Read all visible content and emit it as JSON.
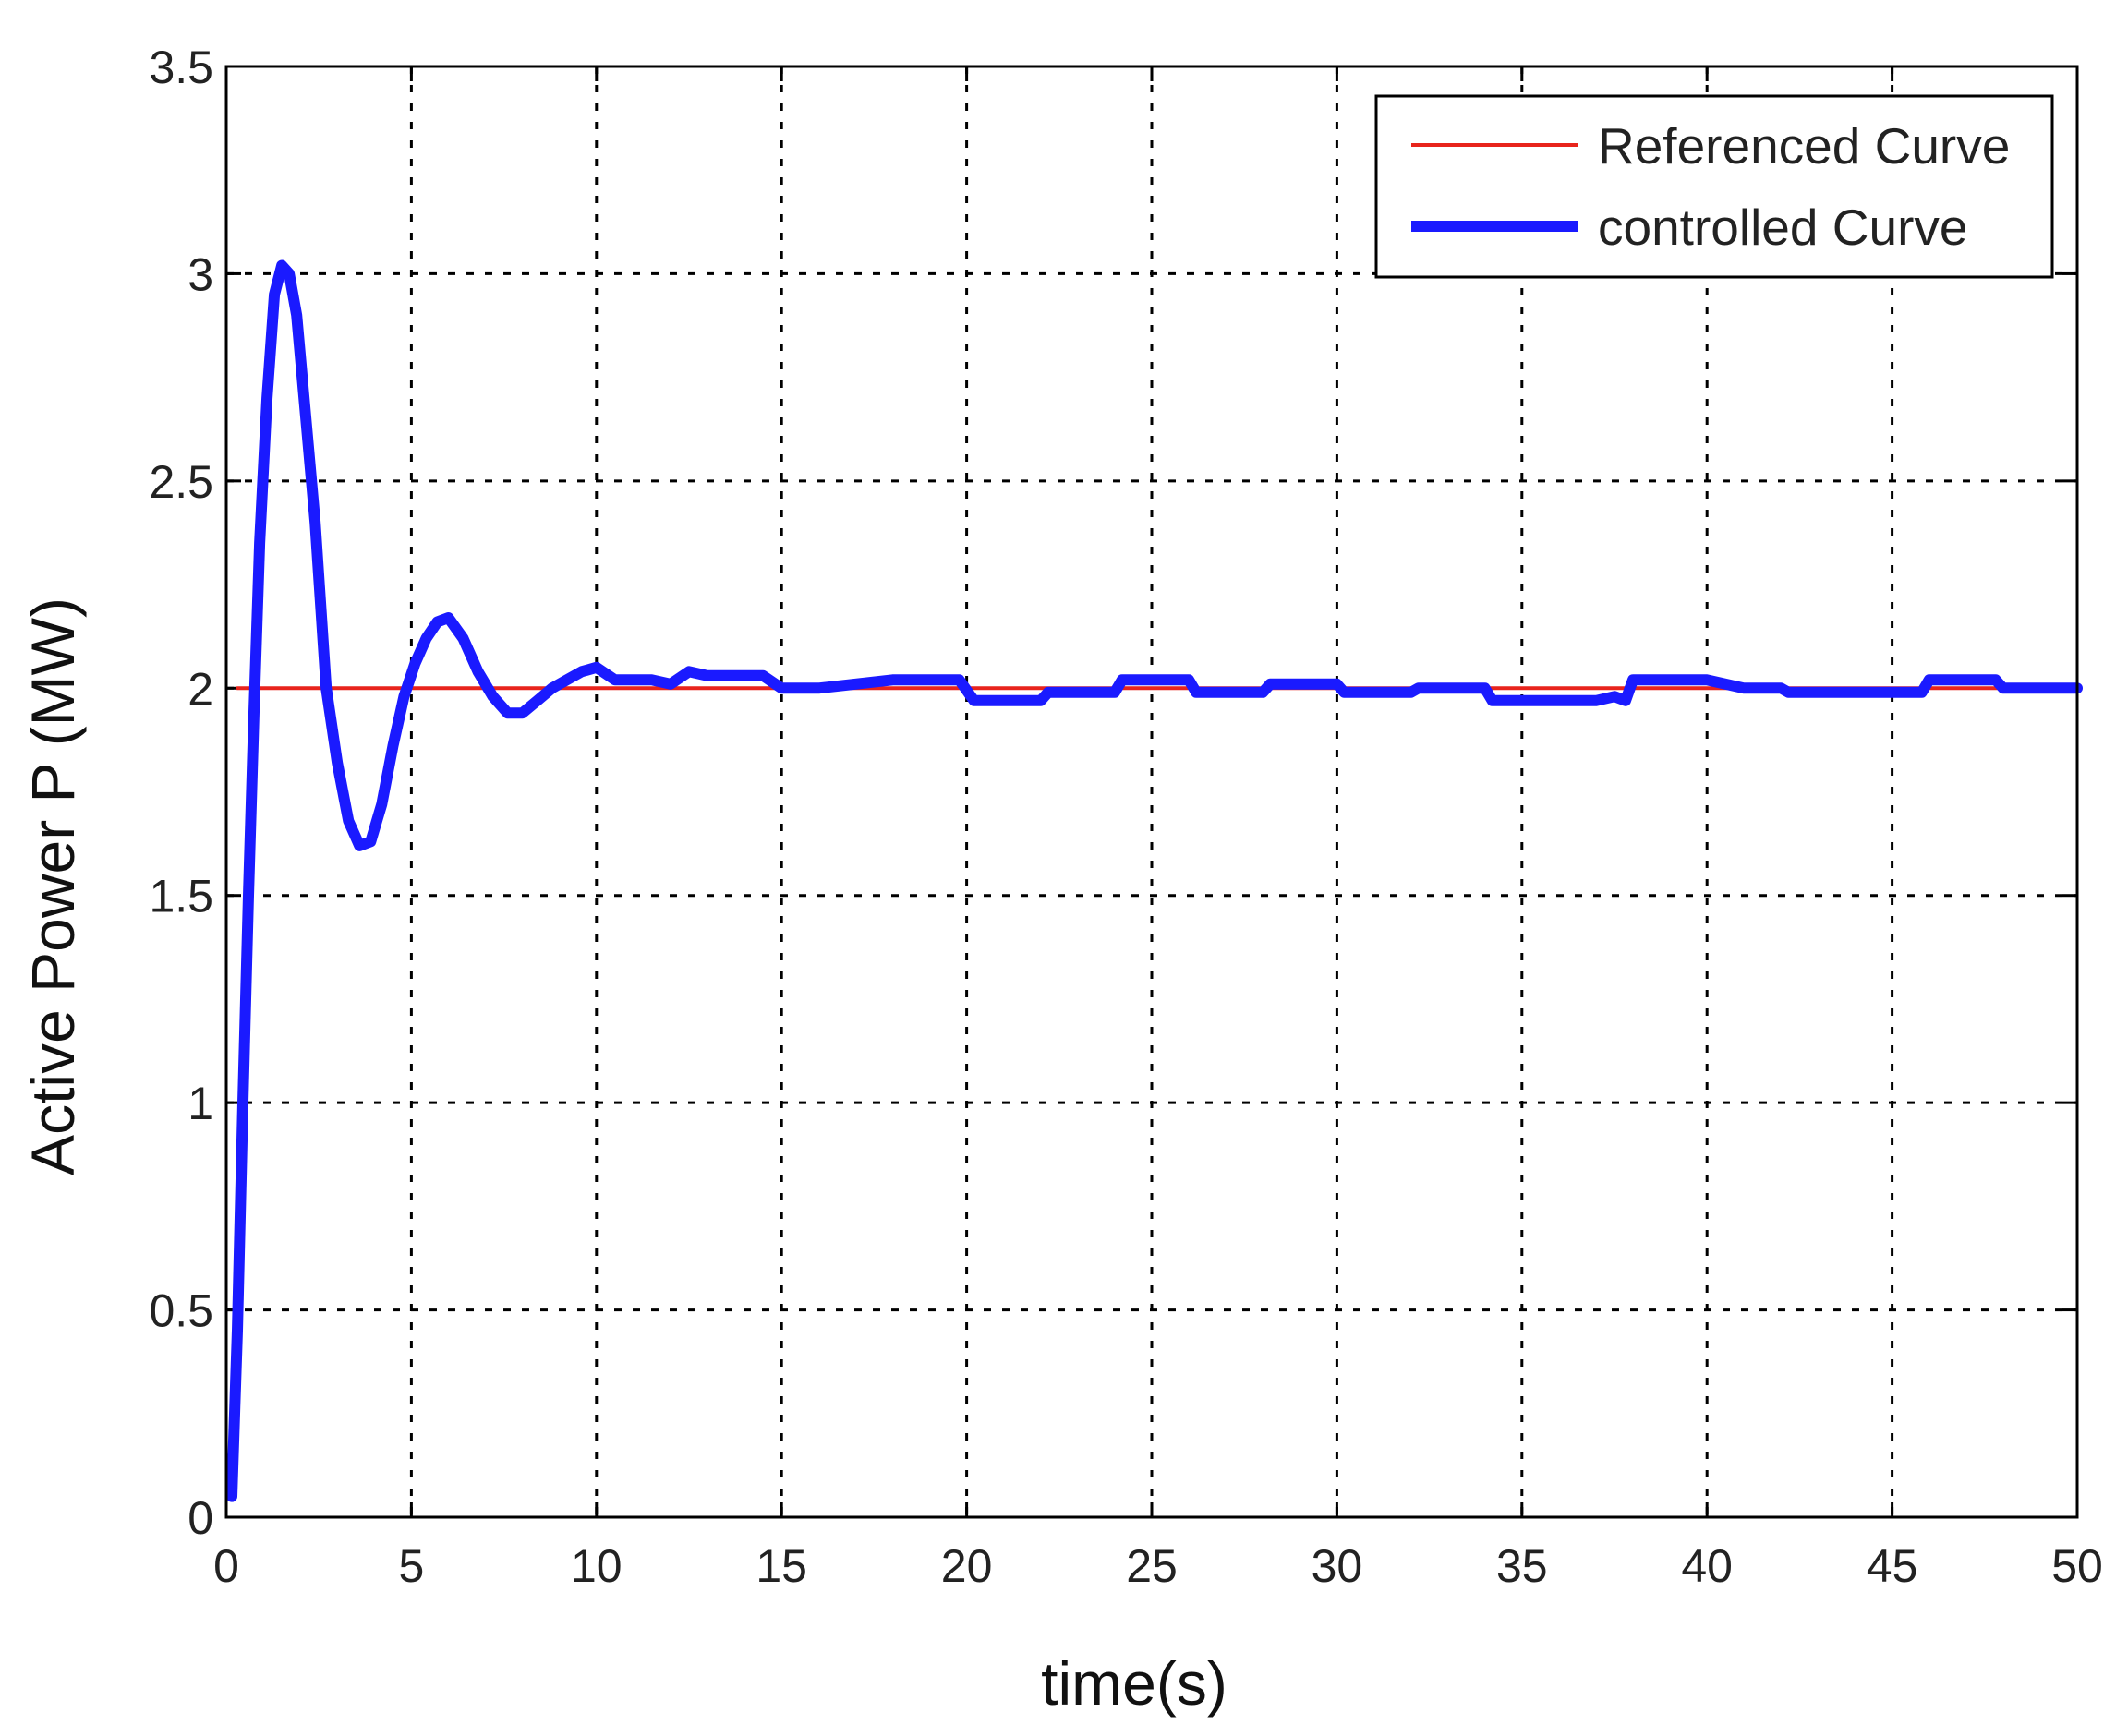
{
  "chart_data": {
    "type": "line",
    "xlabel": "time(s)",
    "ylabel": "Active Power P (MW)",
    "xlim": [
      0,
      50
    ],
    "ylim": [
      0,
      3.5
    ],
    "grid": true,
    "legend_position": "top-right",
    "x_ticks": [
      0,
      5,
      10,
      15,
      20,
      25,
      30,
      35,
      40,
      45,
      50
    ],
    "x_tick_labels": [
      "0",
      "5",
      "10",
      "15",
      "20",
      "25",
      "30",
      "35",
      "40",
      "45",
      "50"
    ],
    "y_ticks": [
      0,
      0.5,
      1,
      1.5,
      2,
      2.5,
      3,
      3.5
    ],
    "y_tick_labels": [
      "0",
      "0.5",
      "1",
      "1.5",
      "2",
      "2.5",
      "3",
      "3.5"
    ],
    "series": [
      {
        "name": "Referenced Curve",
        "color": "#e8241c",
        "x": [
          0.3,
          50
        ],
        "y": [
          2.0,
          2.0
        ]
      },
      {
        "name": "controlled Curve",
        "color": "#1a1aff",
        "x": [
          0.15,
          0.3,
          0.45,
          0.6,
          0.75,
          0.9,
          1.1,
          1.3,
          1.5,
          1.7,
          1.9,
          2.1,
          2.4,
          2.7,
          3.0,
          3.3,
          3.6,
          3.9,
          4.2,
          4.5,
          4.8,
          5.1,
          5.4,
          5.7,
          6.0,
          6.4,
          6.8,
          7.2,
          7.6,
          8.0,
          8.4,
          8.8,
          9.2,
          9.6,
          10.0,
          10.5,
          11.0,
          11.5,
          12.0,
          12.5,
          13.0,
          13.5,
          14.0,
          14.5,
          15.0,
          15.5,
          16.0,
          17.0,
          18.0,
          19.0,
          19.8,
          20.2,
          21.0,
          22.0,
          22.2,
          23.0,
          24.0,
          24.2,
          25.0,
          26.0,
          26.2,
          27.0,
          28.0,
          28.2,
          29.0,
          30.0,
          30.2,
          31.0,
          32.0,
          32.2,
          33.0,
          34.0,
          34.2,
          35.0,
          36.0,
          37.0,
          37.5,
          37.8,
          38.0,
          39.0,
          40.0,
          41.0,
          42.0,
          42.2,
          43.0,
          44.0,
          45.0,
          45.8,
          46.0,
          47.0,
          47.8,
          48.0,
          49.0,
          50.0
        ],
        "y": [
          0.05,
          0.45,
          1.0,
          1.5,
          1.95,
          2.35,
          2.7,
          2.95,
          3.02,
          3.0,
          2.9,
          2.7,
          2.4,
          2.0,
          1.82,
          1.68,
          1.62,
          1.63,
          1.72,
          1.86,
          1.98,
          2.06,
          2.12,
          2.16,
          2.17,
          2.12,
          2.04,
          1.98,
          1.94,
          1.94,
          1.97,
          2.0,
          2.02,
          2.04,
          2.05,
          2.02,
          2.02,
          2.02,
          2.01,
          2.04,
          2.03,
          2.03,
          2.03,
          2.03,
          2.0,
          2.0,
          2.0,
          2.01,
          2.02,
          2.02,
          2.02,
          1.97,
          1.97,
          1.97,
          1.99,
          1.99,
          1.99,
          2.02,
          2.02,
          2.02,
          1.99,
          1.99,
          1.99,
          2.01,
          2.01,
          2.01,
          1.99,
          1.99,
          1.99,
          2.0,
          2.0,
          2.0,
          1.97,
          1.97,
          1.97,
          1.97,
          1.98,
          1.97,
          2.02,
          2.02,
          2.02,
          2.0,
          2.0,
          1.99,
          1.99,
          1.99,
          1.99,
          1.99,
          2.02,
          2.02,
          2.02,
          2.0,
          2.0,
          2.0
        ]
      }
    ]
  }
}
